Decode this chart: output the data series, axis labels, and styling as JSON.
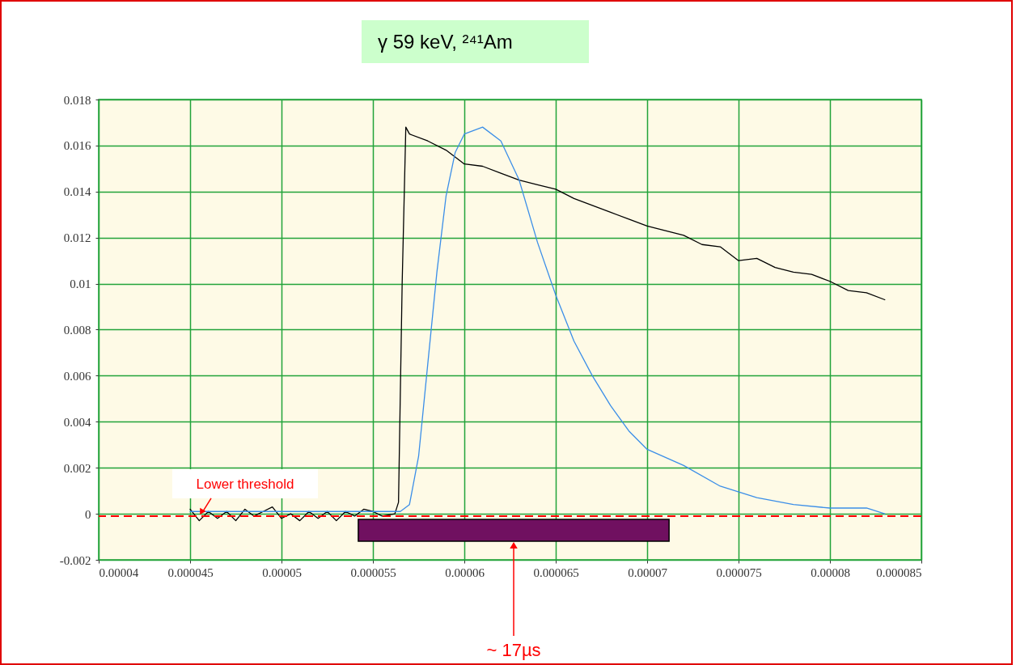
{
  "chart_data": {
    "type": "line",
    "title": "γ 59 keV, ²⁴¹Am",
    "xlim": [
      4e-05,
      8.5e-05
    ],
    "xticks": [
      {
        "value": 4e-05,
        "label": "0.00004"
      },
      {
        "value": 4.5e-05,
        "label": "0.000045"
      },
      {
        "value": 5e-05,
        "label": "0.00005"
      },
      {
        "value": 5.5e-05,
        "label": "0.000055"
      },
      {
        "value": 6e-05,
        "label": "0.00006"
      },
      {
        "value": 6.5e-05,
        "label": "0.000065"
      },
      {
        "value": 7e-05,
        "label": "0.00007"
      },
      {
        "value": 7.5e-05,
        "label": "0.000075"
      },
      {
        "value": 8e-05,
        "label": "0.00008"
      },
      {
        "value": 8.5e-05,
        "label": "0.000085"
      }
    ],
    "ylim": [
      -0.002,
      0.018
    ],
    "yticks": [
      -0.002,
      0,
      0.002,
      0.004,
      0.006,
      0.008,
      0.01,
      0.012,
      0.014,
      0.016,
      0.018
    ],
    "grid": true,
    "series": [
      {
        "color": "#000000",
        "x": [
          4.5e-05,
          4.55e-05,
          4.6e-05,
          4.65e-05,
          4.7e-05,
          4.75e-05,
          4.8e-05,
          4.85e-05,
          4.9e-05,
          4.95e-05,
          5e-05,
          5.05e-05,
          5.1e-05,
          5.15e-05,
          5.2e-05,
          5.25e-05,
          5.3e-05,
          5.35e-05,
          5.4e-05,
          5.45e-05,
          5.5e-05,
          5.55e-05,
          5.62e-05,
          5.64e-05,
          5.66e-05,
          5.68e-05,
          5.7e-05,
          5.8e-05,
          5.9e-05,
          6e-05,
          6.1e-05,
          6.2e-05,
          6.3e-05,
          6.4e-05,
          6.5e-05,
          6.6e-05,
          6.7e-05,
          6.8e-05,
          6.9e-05,
          7e-05,
          7.1e-05,
          7.2e-05,
          7.3e-05,
          7.4e-05,
          7.5e-05,
          7.6e-05,
          7.7e-05,
          7.8e-05,
          7.9e-05,
          8e-05,
          8.1e-05,
          8.2e-05,
          8.3e-05
        ],
        "values": [
          0.0002,
          -0.0003,
          0.0001,
          -0.0002,
          0.0001,
          -0.0003,
          0.0002,
          -0.0001,
          0.0001,
          0.0003,
          -0.0002,
          0,
          -0.0003,
          0.0001,
          -0.0002,
          0.0001,
          -0.0003,
          0.0001,
          -0.0001,
          0.0002,
          0.0001,
          -0.0001,
          0,
          0.0005,
          0.01,
          0.0168,
          0.0165,
          0.0162,
          0.0158,
          0.0152,
          0.0151,
          0.0148,
          0.0145,
          0.0143,
          0.0141,
          0.0137,
          0.0134,
          0.0131,
          0.0128,
          0.0125,
          0.0123,
          0.0121,
          0.0117,
          0.0116,
          0.011,
          0.0111,
          0.0107,
          0.0105,
          0.0104,
          0.0101,
          0.0097,
          0.0096,
          0.0093
        ]
      },
      {
        "color": "#3b8ee8",
        "x": [
          4.5e-05,
          5e-05,
          5.5e-05,
          5.65e-05,
          5.7e-05,
          5.75e-05,
          5.8e-05,
          5.85e-05,
          5.9e-05,
          5.95e-05,
          6e-05,
          6.1e-05,
          6.2e-05,
          6.3e-05,
          6.4e-05,
          6.5e-05,
          6.6e-05,
          6.7e-05,
          6.8e-05,
          6.9e-05,
          7e-05,
          7.2e-05,
          7.4e-05,
          7.6e-05,
          7.8e-05,
          8e-05,
          8.2e-05,
          8.3e-05
        ],
        "values": [
          0.0001,
          0.0001,
          0.0001,
          0.0001,
          0.0004,
          0.0025,
          0.0065,
          0.0105,
          0.0138,
          0.0157,
          0.0165,
          0.0168,
          0.0162,
          0.0145,
          0.0118,
          0.0095,
          0.0075,
          0.006,
          0.0047,
          0.0036,
          0.0028,
          0.0021,
          0.0012,
          0.0007,
          0.0004,
          0.00025,
          0.00025,
          0
        ]
      }
    ],
    "ref_lines": [
      {
        "axis": "y",
        "value": -0.0001,
        "label": "Lower threshold",
        "color": "#ff0000",
        "line_style": "dashed"
      }
    ],
    "bands": [
      {
        "axis": "x",
        "from": 5.42e-05,
        "to": 7.12e-05,
        "label": "~ 17µs",
        "color": "#701060"
      }
    ]
  }
}
